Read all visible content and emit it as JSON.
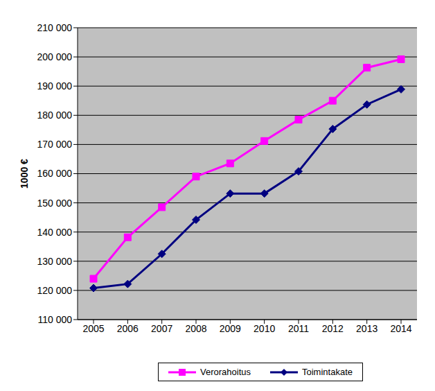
{
  "chart_data": {
    "type": "line",
    "y_label": "1000 €",
    "categories": [
      "2005",
      "2006",
      "2007",
      "2008",
      "2009",
      "2010",
      "2011",
      "2012",
      "2013",
      "2014"
    ],
    "series": [
      {
        "name": "Verorahoitus",
        "color": "#ff00ff",
        "marker": "square",
        "values": [
          124000,
          138200,
          148500,
          159000,
          163500,
          171200,
          178500,
          185000,
          196300,
          199200
        ]
      },
      {
        "name": "Toimintakate",
        "color": "#000080",
        "marker": "diamond",
        "values": [
          120800,
          122200,
          132500,
          144200,
          153200,
          153200,
          160800,
          175300,
          183700,
          188900
        ]
      }
    ],
    "ylim": [
      110000,
      210000
    ],
    "yticks": [
      {
        "value": 110000,
        "label": "110 000"
      },
      {
        "value": 120000,
        "label": "120 000"
      },
      {
        "value": 130000,
        "label": "130 000"
      },
      {
        "value": 140000,
        "label": "140 000"
      },
      {
        "value": 150000,
        "label": "150 000"
      },
      {
        "value": 160000,
        "label": "160 000"
      },
      {
        "value": 170000,
        "label": "170 000"
      },
      {
        "value": 180000,
        "label": "180 000"
      },
      {
        "value": 190000,
        "label": "190 000"
      },
      {
        "value": 200000,
        "label": "200 000"
      },
      {
        "value": 210000,
        "label": "210 000"
      }
    ],
    "grid": true,
    "legend": "bottom"
  }
}
